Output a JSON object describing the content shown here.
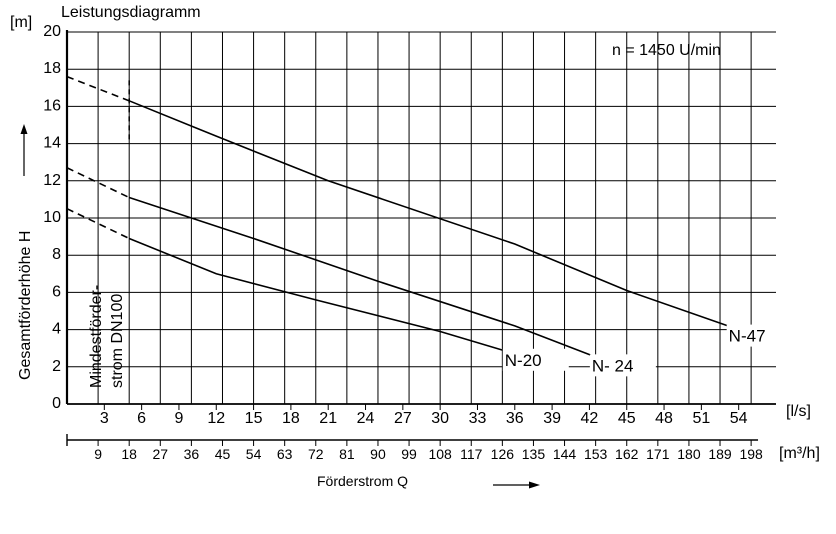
{
  "chart_data": {
    "type": "line",
    "title": "Leistungsdiagramm",
    "annotation": "n = 1450 U/min",
    "y_unit": "[m]",
    "ylabel": "Gesamtförderhöhe H",
    "x_unit": "[l/s]",
    "x2_unit": "[m³/h]",
    "xlabel": "Förderstrom Q",
    "min_flow_label_line1": "Mindestförder-",
    "min_flow_label_line2": "strom DN100",
    "min_flow_marker": 5,
    "xlim": [
      0,
      57
    ],
    "ylim": [
      0,
      20
    ],
    "x_ticks": [
      "3",
      "6",
      "9",
      "12",
      "15",
      "18",
      "21",
      "24",
      "27",
      "30",
      "33",
      "36",
      "39",
      "42",
      "45",
      "48",
      "51",
      "54"
    ],
    "y_ticks": [
      "0",
      "2",
      "4",
      "6",
      "8",
      "10",
      "12",
      "14",
      "16",
      "18",
      "20"
    ],
    "x2_ticks": [
      "9",
      "18",
      "27",
      "36",
      "45",
      "54",
      "63",
      "72",
      "81",
      "90",
      "99",
      "108",
      "117",
      "126",
      "135",
      "144",
      "153",
      "162",
      "171",
      "180",
      "189",
      "198"
    ],
    "grid": true,
    "series": [
      {
        "name": "N-20",
        "dashed": [
          [
            0,
            10.5
          ],
          [
            5,
            8.9
          ]
        ],
        "solid": [
          [
            5,
            8.9
          ],
          [
            12,
            7.0
          ],
          [
            20,
            5.6
          ],
          [
            30,
            3.9
          ],
          [
            36,
            2.7
          ]
        ]
      },
      {
        "name": "N- 24",
        "dashed": [
          [
            0,
            12.7
          ],
          [
            5,
            11.1
          ]
        ],
        "solid": [
          [
            5,
            11.1
          ],
          [
            15,
            8.9
          ],
          [
            25,
            6.6
          ],
          [
            36,
            4.2
          ],
          [
            43,
            2.4
          ]
        ]
      },
      {
        "name": "N-47",
        "dashed": [
          [
            0,
            17.6
          ],
          [
            5,
            16.3
          ]
        ],
        "solid": [
          [
            5,
            16.3
          ],
          [
            12,
            14.4
          ],
          [
            21,
            12.0
          ],
          [
            36,
            8.6
          ],
          [
            45,
            6.1
          ],
          [
            54,
            4.0
          ]
        ]
      }
    ]
  }
}
